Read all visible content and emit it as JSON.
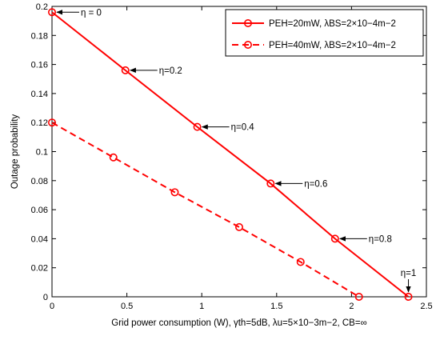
{
  "chart_data": {
    "type": "line",
    "xlabel": "Grid power consumption (W), γth=5dB, λu=5×10−3m−2, CB=∞",
    "ylabel": "Outage probability",
    "xlim": [
      0,
      2.5
    ],
    "ylim": [
      0,
      0.2
    ],
    "x_ticks": [
      0,
      0.5,
      1,
      1.5,
      2,
      2.5
    ],
    "y_ticks": [
      0,
      0.02,
      0.04,
      0.06,
      0.08,
      0.1,
      0.12,
      0.14,
      0.16,
      0.18,
      0.2
    ],
    "x_tick_labels": [
      "0",
      "0.5",
      "1",
      "1.5",
      "2",
      "2.5"
    ],
    "y_tick_labels": [
      "0",
      "0.02",
      "0.04",
      "0.06",
      "0.08",
      "0.1",
      "0.12",
      "0.14",
      "0.16",
      "0.18",
      "0.2"
    ],
    "grid": false,
    "legend_position": "top-right",
    "series": [
      {
        "name": "PEH=20mW, λBS=2×10−4m−2",
        "color": "#ff0000",
        "line_style": "solid",
        "marker": "circle",
        "x": [
          0,
          0.49,
          0.97,
          1.46,
          1.89,
          2.38
        ],
        "y": [
          0.196,
          0.156,
          0.117,
          0.078,
          0.04,
          0.0
        ]
      },
      {
        "name": "PEH=40mW, λBS=2×10−4m−2",
        "color": "#ff0000",
        "line_style": "dashed",
        "marker": "circle",
        "x": [
          0,
          0.41,
          0.82,
          1.25,
          1.66,
          2.05
        ],
        "y": [
          0.12,
          0.096,
          0.072,
          0.048,
          0.024,
          0.0
        ]
      }
    ],
    "annotations": [
      {
        "text": "η = 0",
        "x": 0,
        "y": 0.196
      },
      {
        "text": "η=0.2",
        "x": 0.49,
        "y": 0.156
      },
      {
        "text": "η=0.4",
        "x": 0.97,
        "y": 0.117
      },
      {
        "text": "η=0.6",
        "x": 1.46,
        "y": 0.078
      },
      {
        "text": "η=0.8",
        "x": 1.89,
        "y": 0.04
      },
      {
        "text": "η=1",
        "x": 2.38,
        "y": 0.0
      }
    ]
  }
}
